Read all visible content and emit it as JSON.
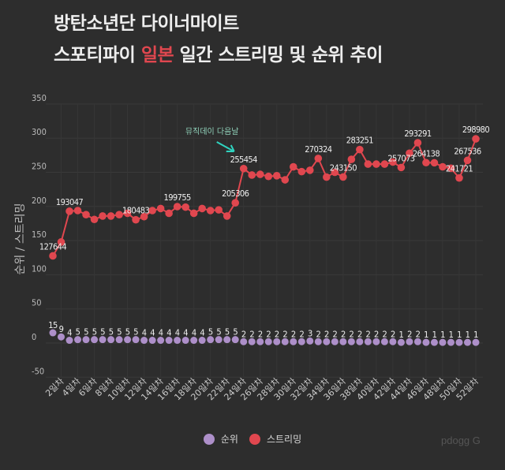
{
  "title": {
    "line1": "방탄소년단 다이너마이트",
    "line2_pre": "스포티파이 ",
    "line2_highlight": "일본",
    "line2_post": " 일간 스트리밍 및 순위 추이"
  },
  "watermark": "pdogg G",
  "chart_data": {
    "type": "line",
    "ylabel": "순위 / 스트리밍",
    "xlabel": "",
    "ylim": [
      -50,
      350
    ],
    "yticks": [
      "350",
      "300",
      "250",
      "200",
      "150",
      "100",
      "50",
      "0",
      "-50"
    ],
    "grid": true,
    "legend": "bottom",
    "x": [
      1,
      2,
      3,
      4,
      5,
      6,
      7,
      8,
      9,
      10,
      11,
      12,
      13,
      14,
      15,
      16,
      17,
      18,
      19,
      20,
      21,
      22,
      23,
      24,
      25,
      26,
      27,
      28,
      29,
      30,
      31,
      32,
      33,
      34,
      35,
      36,
      37,
      38,
      39,
      40,
      41,
      42,
      43,
      44,
      45,
      46,
      47,
      48,
      49,
      50,
      51,
      52
    ],
    "xtick_labels": [
      "2일차",
      "4일차",
      "6일차",
      "8일차",
      "10일차",
      "12일차",
      "14일차",
      "16일차",
      "18일차",
      "20일차",
      "22일차",
      "24일차",
      "26일차",
      "28일차",
      "30일차",
      "32일차",
      "34일차",
      "36일차",
      "38일차",
      "40일차",
      "42일차",
      "44일차",
      "46일차",
      "48일차",
      "50일차",
      "52일차"
    ],
    "series": [
      {
        "name": "순위",
        "color": "#ad8fc9",
        "values": [
          15,
          9,
          4,
          5,
          5,
          5,
          5,
          5,
          5,
          5,
          5,
          4,
          4,
          4,
          4,
          4,
          4,
          4,
          4,
          5,
          5,
          5,
          5,
          2,
          2,
          2,
          2,
          2,
          2,
          2,
          2,
          3,
          2,
          2,
          2,
          2,
          2,
          2,
          2,
          2,
          2,
          2,
          1,
          2,
          2,
          1,
          1,
          1,
          1,
          1,
          1,
          1
        ],
        "labels": [
          "15",
          "9",
          "4",
          "5",
          "5",
          "5",
          "5",
          "5",
          "5",
          "5",
          "5",
          "4",
          "4",
          "4",
          "4",
          "4",
          "4",
          "4",
          "4",
          "5",
          "5",
          "5",
          "5",
          "2",
          "2",
          "2",
          "2",
          "2",
          "2",
          "2",
          "2",
          "3",
          "2",
          "2",
          "2",
          "2",
          "2",
          "2",
          "2",
          "2",
          "2",
          "2",
          "1",
          "2",
          "2",
          "1",
          "1",
          "1",
          "1",
          "1",
          "1",
          "1"
        ]
      },
      {
        "name": "스트리밍",
        "color": "#e0474f",
        "values": [
          127.644,
          148,
          193.047,
          194,
          188,
          181,
          186,
          186,
          188,
          190,
          180.483,
          185,
          194,
          197,
          190,
          199.755,
          199,
          190,
          197,
          194,
          195,
          186,
          205.306,
          255.454,
          246,
          247,
          244,
          245,
          239,
          258,
          251,
          253,
          270.324,
          243,
          250,
          243.15,
          269,
          283.251,
          262,
          262,
          262,
          265,
          257.073,
          278,
          293.291,
          264.138,
          264,
          258,
          256,
          241.721,
          267.536,
          298.98
        ],
        "labels": [
          "127644",
          "",
          "193047",
          "",
          "",
          "",
          "",
          "",
          "",
          "",
          "180483",
          "",
          "",
          "",
          "",
          "199755",
          "",
          "",
          "",
          "",
          "",
          "",
          "205306",
          "255454",
          "",
          "",
          "",
          "",
          "",
          "",
          "",
          "",
          "270324",
          "",
          "",
          "243150",
          "",
          "283251",
          "",
          "",
          "",
          "",
          "257073",
          "",
          "293291",
          "264138",
          "",
          "",
          "",
          "241721",
          "267536",
          "298980"
        ]
      }
    ],
    "annotation": {
      "text": "뮤직데이 다음날",
      "x": 24,
      "color": "#2fd4c0"
    }
  }
}
